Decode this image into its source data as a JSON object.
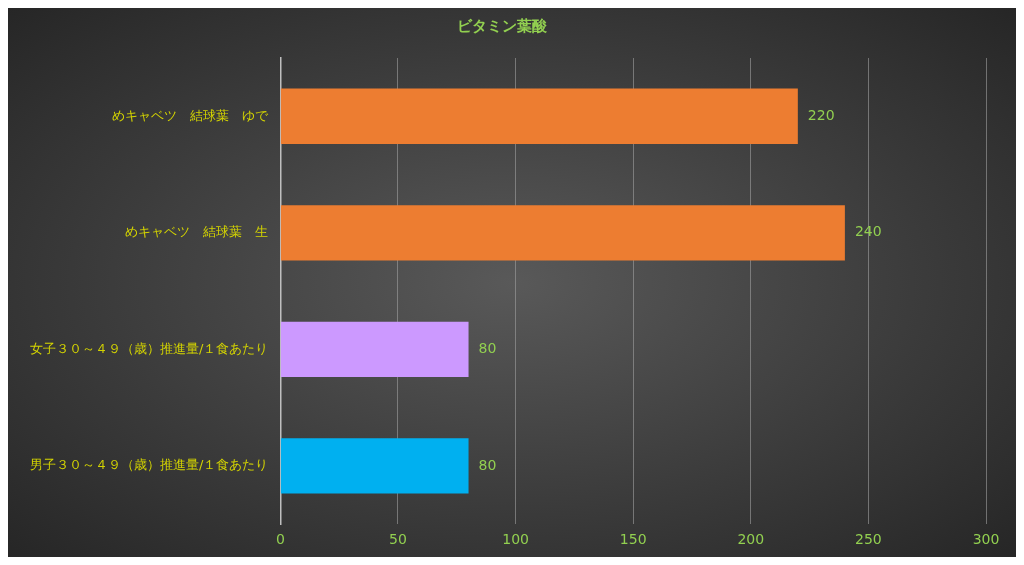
{
  "chart_data": {
    "type": "bar",
    "orientation": "horizontal",
    "title": "ビタミン葉酸",
    "categories": [
      "めキャベツ　結球葉　ゆで",
      "めキャベツ　結球葉　生",
      "女子３０～４９（歳）推進量/１食あたり",
      "男子３０～４９（歳）推進量/１食あたり"
    ],
    "values": [
      220,
      240,
      80,
      80
    ],
    "colors": [
      "#ed7d31",
      "#ed7d31",
      "#cc99ff",
      "#00b0f0"
    ],
    "xlim": [
      0,
      300
    ],
    "xticks": [
      0,
      50,
      100,
      150,
      200,
      250,
      300
    ],
    "grid": "x",
    "data_labels": true,
    "legend": false
  }
}
